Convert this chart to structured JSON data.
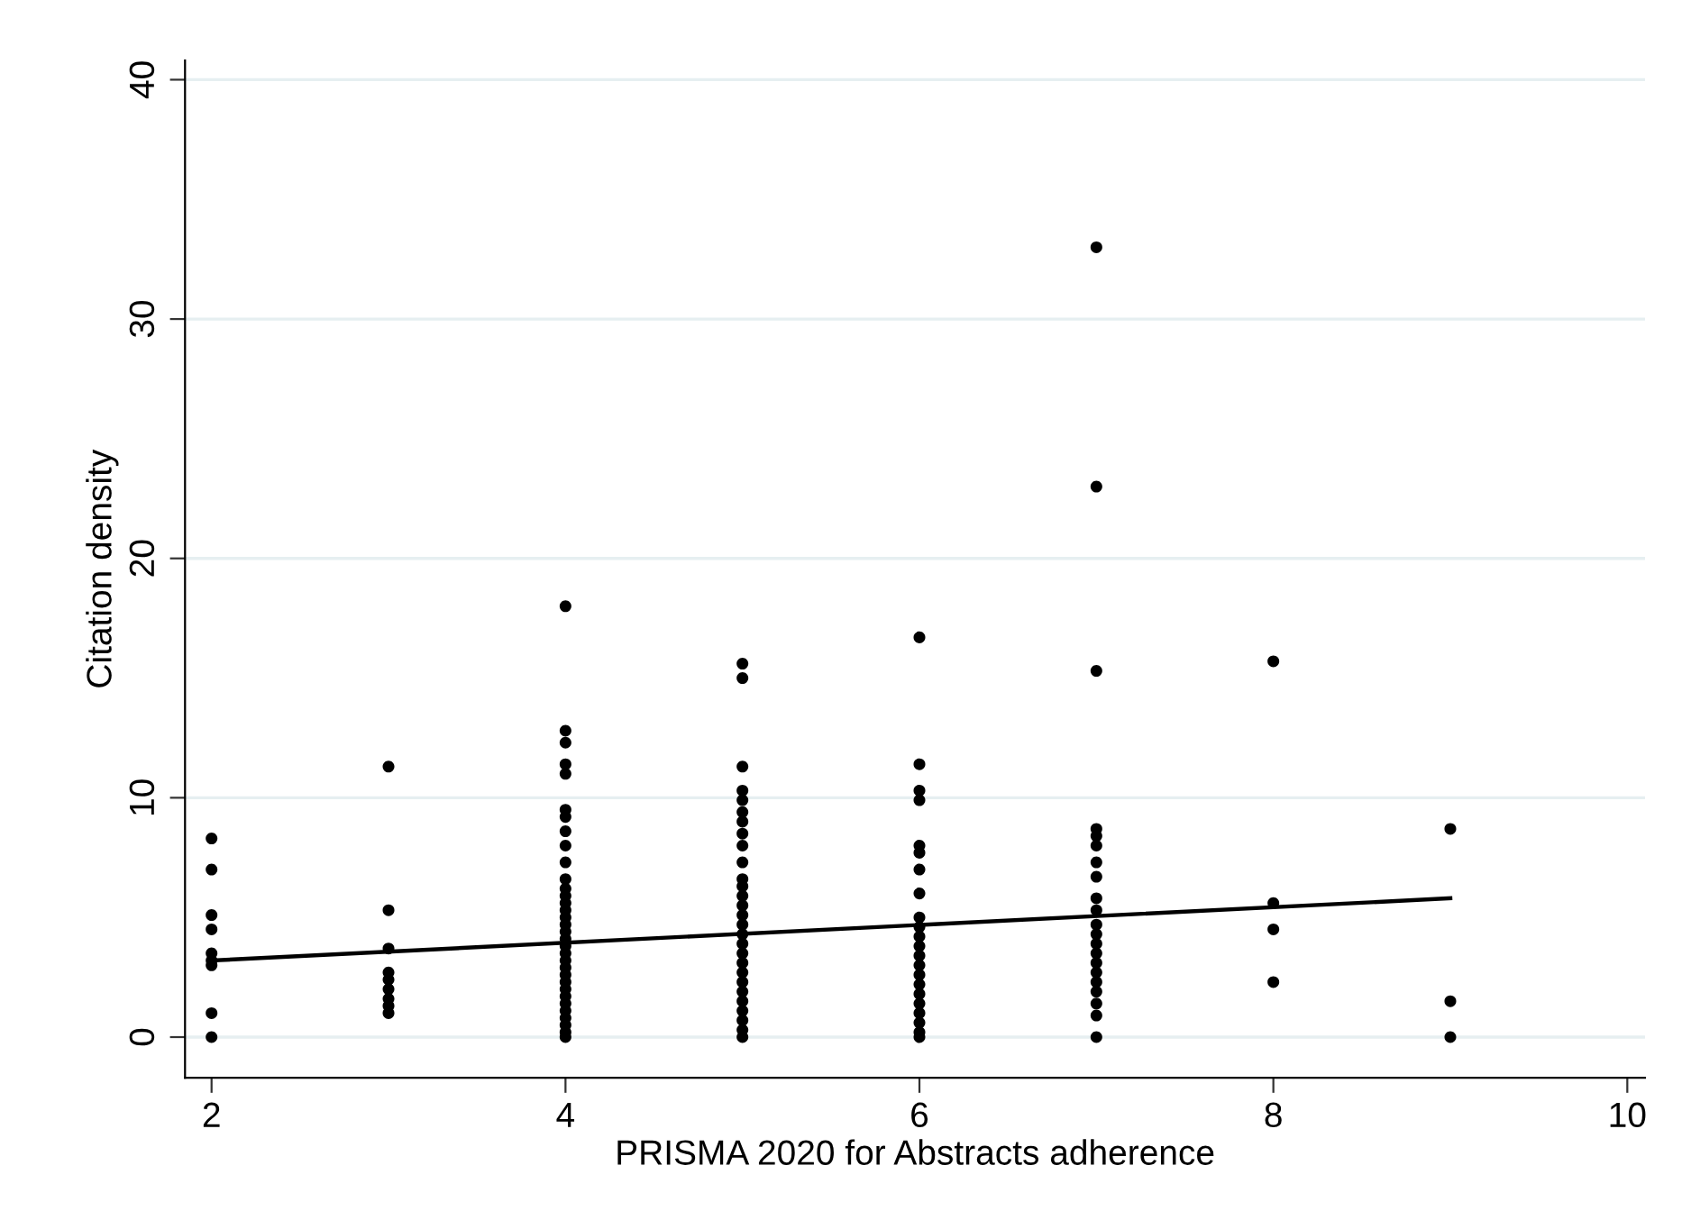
{
  "chart_data": {
    "type": "scatter",
    "xlabel": "PRISMA 2020 for Abstracts adherence",
    "ylabel": "Citation density",
    "xlim": [
      1.85,
      10.1
    ],
    "ylim": [
      -1.7,
      40.8
    ],
    "xticks": [
      2,
      4,
      6,
      8,
      10
    ],
    "yticks": [
      0,
      10,
      20,
      30,
      40
    ],
    "grid": "y",
    "series": [
      {
        "color": "#000000",
        "marker": "circle",
        "x": [
          2,
          2,
          2,
          2,
          2,
          2,
          2,
          2,
          2,
          3,
          3,
          3,
          3,
          3,
          3,
          3,
          3,
          3,
          4,
          4,
          4,
          4,
          4,
          4,
          4,
          4,
          4,
          4,
          4,
          4,
          4,
          4,
          4,
          4,
          4,
          4,
          4,
          4,
          4,
          4,
          4,
          4,
          4,
          4,
          4,
          4,
          4,
          4,
          4,
          4,
          4,
          5,
          5,
          5,
          5,
          5,
          5,
          5,
          5,
          5,
          5,
          5,
          5,
          5,
          5,
          5,
          5,
          5,
          5,
          5,
          5,
          5,
          5,
          5,
          5,
          5,
          5,
          5,
          5,
          6,
          6,
          6,
          6,
          6,
          6,
          6,
          6,
          6,
          6,
          6,
          6,
          6,
          6,
          6,
          6,
          6,
          6,
          6,
          6,
          6,
          6,
          7,
          7,
          7,
          7,
          7,
          7,
          7,
          7,
          7,
          7,
          7,
          7,
          7,
          7,
          7,
          7,
          7,
          7,
          7,
          7,
          7,
          8,
          8,
          8,
          8,
          9,
          9,
          9
        ],
        "values": [
          8.3,
          7.0,
          5.1,
          4.5,
          3.5,
          3.2,
          3.0,
          1.0,
          0,
          11.3,
          5.3,
          3.7,
          2.7,
          2.4,
          2.0,
          1.6,
          1.3,
          1.0,
          18.0,
          12.8,
          12.3,
          11.4,
          11.0,
          9.5,
          9.2,
          8.6,
          8.0,
          7.3,
          6.6,
          6.2,
          5.9,
          5.6,
          5.3,
          5.0,
          4.7,
          4.4,
          4.1,
          3.8,
          3.5,
          3.2,
          2.9,
          2.6,
          2.3,
          2.0,
          1.7,
          1.4,
          1.1,
          0.8,
          0.5,
          0.2,
          0,
          15.6,
          15.0,
          11.3,
          10.3,
          9.9,
          9.4,
          9.0,
          8.5,
          8.0,
          7.3,
          6.6,
          6.3,
          5.9,
          5.5,
          5.1,
          4.7,
          4.3,
          3.9,
          3.5,
          3.1,
          2.7,
          2.3,
          1.9,
          1.5,
          1.1,
          0.7,
          0.3,
          0,
          16.7,
          11.4,
          10.3,
          9.9,
          8.0,
          7.7,
          7.0,
          6.0,
          5.0,
          4.6,
          4.2,
          3.8,
          3.4,
          3.0,
          2.6,
          2.2,
          1.8,
          1.4,
          1.0,
          0.6,
          0.2,
          0,
          33.0,
          23.0,
          15.3,
          8.7,
          8.4,
          8.0,
          7.3,
          6.7,
          5.8,
          5.3,
          4.7,
          4.3,
          3.9,
          3.5,
          3.1,
          2.7,
          2.3,
          1.9,
          1.4,
          0.9,
          0,
          15.7,
          5.6,
          4.5,
          2.3,
          8.7,
          1.5,
          0
        ]
      },
      {
        "type": "line",
        "marker": "none",
        "color": "#000000",
        "x": [
          2,
          9
        ],
        "values": [
          3.2,
          5.8
        ]
      }
    ]
  }
}
